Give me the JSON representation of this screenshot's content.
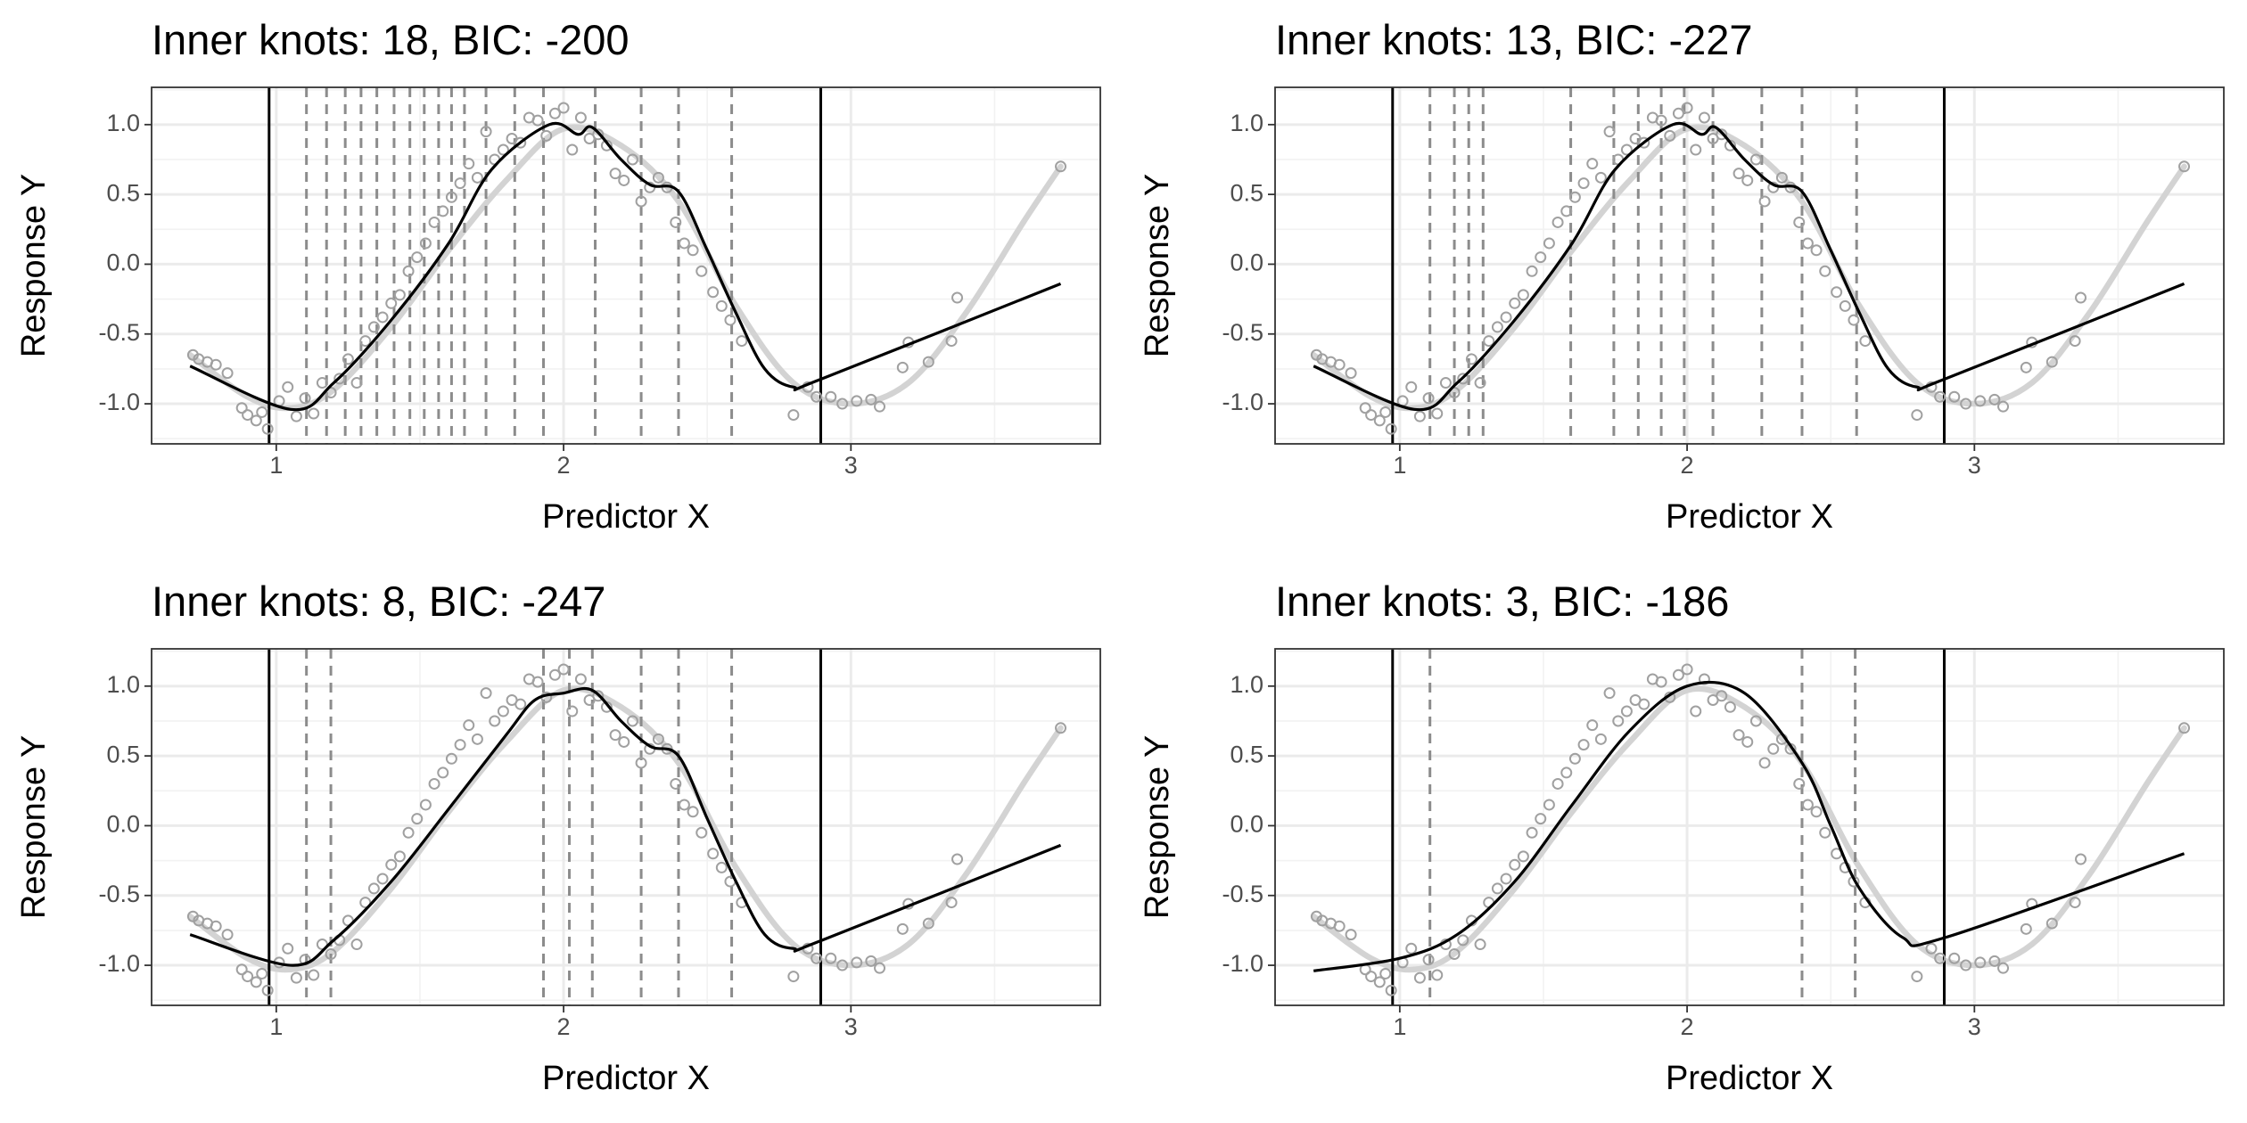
{
  "chart_data": [
    {
      "type": "line",
      "title": "Inner knots: 18, BIC: -200",
      "xlabel": "Predictor X",
      "ylabel": "Response Y",
      "xlim": [
        0.566,
        3.868
      ],
      "ylim": [
        -1.287,
        1.267
      ],
      "xticks": [
        1,
        2,
        3
      ],
      "yticks": [
        {
          "value": -1,
          "label": "-1.0"
        },
        -0.5,
        {
          "value": 0,
          "label": "0.0"
        },
        0.5,
        {
          "value": 1,
          "label": "1.0"
        }
      ],
      "grid": true,
      "points": {
        "color": "#a0a0a0",
        "x": [
          0.71,
          0.73,
          0.76,
          0.79,
          0.83,
          0.88,
          0.9,
          0.93,
          0.95,
          0.97,
          1.01,
          1.04,
          1.07,
          1.1,
          1.13,
          1.16,
          1.19,
          1.22,
          1.25,
          1.28,
          1.31,
          1.34,
          1.37,
          1.4,
          1.43,
          1.46,
          1.49,
          1.52,
          1.55,
          1.58,
          1.61,
          1.64,
          1.67,
          1.7,
          1.73,
          1.76,
          1.79,
          1.82,
          1.85,
          1.88,
          1.91,
          1.94,
          1.97,
          2.0,
          2.03,
          2.06,
          2.09,
          2.12,
          2.15,
          2.18,
          2.21,
          2.24,
          2.27,
          2.3,
          2.33,
          2.36,
          2.39,
          2.42,
          2.45,
          2.48,
          2.52,
          2.55,
          2.58,
          2.62,
          2.8,
          2.85,
          2.88,
          2.93,
          2.97,
          3.02,
          3.07,
          3.1,
          3.18,
          3.2,
          3.27,
          3.35,
          3.37,
          3.73
        ],
        "values": [
          -0.65,
          -0.68,
          -0.7,
          -0.72,
          -0.78,
          -1.03,
          -1.08,
          -1.12,
          -1.06,
          -1.18,
          -0.98,
          -0.88,
          -1.09,
          -0.96,
          -1.07,
          -0.85,
          -0.92,
          -0.82,
          -0.68,
          -0.85,
          -0.55,
          -0.45,
          -0.38,
          -0.28,
          -0.22,
          -0.05,
          0.05,
          0.15,
          0.3,
          0.38,
          0.48,
          0.58,
          0.72,
          0.62,
          0.95,
          0.75,
          0.82,
          0.9,
          0.87,
          1.05,
          1.03,
          0.92,
          1.08,
          1.12,
          0.82,
          1.05,
          0.9,
          0.93,
          0.85,
          0.65,
          0.6,
          0.75,
          0.45,
          0.55,
          0.62,
          0.55,
          0.3,
          0.15,
          0.1,
          -0.05,
          -0.2,
          -0.3,
          -0.4,
          -0.55,
          -1.08,
          -0.88,
          -0.95,
          -0.95,
          -1.0,
          -0.98,
          -0.97,
          -1.02,
          -0.74,
          -0.56,
          -0.7,
          -0.55,
          -0.24,
          0.7
        ]
      },
      "truth": {
        "color": "#d3d3d3",
        "x": [
          0.7,
          0.9,
          1.05,
          1.2,
          1.4,
          1.6,
          1.8,
          2.0,
          2.2,
          2.4,
          2.6,
          2.8,
          3.0,
          3.2,
          3.4,
          3.6,
          3.73
        ],
        "values": [
          -0.65,
          -0.95,
          -1.03,
          -0.9,
          -0.45,
          0.1,
          0.6,
          0.97,
          0.85,
          0.45,
          -0.3,
          -0.85,
          -1.0,
          -0.85,
          -0.35,
          0.3,
          0.7
        ]
      },
      "fit": {
        "color": "#000000",
        "x": [
          0.7,
          1.05,
          1.2,
          1.4,
          1.6,
          1.75,
          1.95,
          2.05,
          2.1,
          2.2,
          2.3,
          2.4,
          2.5,
          2.6,
          2.7,
          2.8,
          2.9,
          3.73
        ],
        "values": [
          -0.73,
          -1.04,
          -0.85,
          -0.4,
          0.15,
          0.68,
          1.0,
          0.93,
          0.98,
          0.75,
          0.57,
          0.52,
          0.1,
          -0.35,
          -0.75,
          -0.88,
          -0.82,
          -0.14
        ]
      },
      "boundary_knots": [
        0.975,
        2.895
      ],
      "inner_knots": [
        1.105,
        1.175,
        1.24,
        1.295,
        1.35,
        1.41,
        1.465,
        1.515,
        1.565,
        1.61,
        1.655,
        1.73,
        1.83,
        1.93,
        2.11,
        2.27,
        2.4,
        2.585
      ]
    },
    {
      "type": "line",
      "title": "Inner knots: 13, BIC: -227",
      "xlabel": "Predictor X",
      "ylabel": "Response Y",
      "xlim": [
        0.566,
        3.868
      ],
      "ylim": [
        -1.287,
        1.267
      ],
      "xticks": [
        1,
        2,
        3
      ],
      "yticks": [
        {
          "value": -1,
          "label": "-1.0"
        },
        -0.5,
        {
          "value": 0,
          "label": "0.0"
        },
        0.5,
        {
          "value": 1,
          "label": "1.0"
        }
      ],
      "grid": true,
      "points": {
        "color": "#a0a0a0",
        "x": [
          0.71,
          0.73,
          0.76,
          0.79,
          0.83,
          0.88,
          0.9,
          0.93,
          0.95,
          0.97,
          1.01,
          1.04,
          1.07,
          1.1,
          1.13,
          1.16,
          1.19,
          1.22,
          1.25,
          1.28,
          1.31,
          1.34,
          1.37,
          1.4,
          1.43,
          1.46,
          1.49,
          1.52,
          1.55,
          1.58,
          1.61,
          1.64,
          1.67,
          1.7,
          1.73,
          1.76,
          1.79,
          1.82,
          1.85,
          1.88,
          1.91,
          1.94,
          1.97,
          2.0,
          2.03,
          2.06,
          2.09,
          2.12,
          2.15,
          2.18,
          2.21,
          2.24,
          2.27,
          2.3,
          2.33,
          2.36,
          2.39,
          2.42,
          2.45,
          2.48,
          2.52,
          2.55,
          2.58,
          2.62,
          2.8,
          2.85,
          2.88,
          2.93,
          2.97,
          3.02,
          3.07,
          3.1,
          3.18,
          3.2,
          3.27,
          3.35,
          3.37,
          3.73
        ],
        "values": [
          -0.65,
          -0.68,
          -0.7,
          -0.72,
          -0.78,
          -1.03,
          -1.08,
          -1.12,
          -1.06,
          -1.18,
          -0.98,
          -0.88,
          -1.09,
          -0.96,
          -1.07,
          -0.85,
          -0.92,
          -0.82,
          -0.68,
          -0.85,
          -0.55,
          -0.45,
          -0.38,
          -0.28,
          -0.22,
          -0.05,
          0.05,
          0.15,
          0.3,
          0.38,
          0.48,
          0.58,
          0.72,
          0.62,
          0.95,
          0.75,
          0.82,
          0.9,
          0.87,
          1.05,
          1.03,
          0.92,
          1.08,
          1.12,
          0.82,
          1.05,
          0.9,
          0.93,
          0.85,
          0.65,
          0.6,
          0.75,
          0.45,
          0.55,
          0.62,
          0.55,
          0.3,
          0.15,
          0.1,
          -0.05,
          -0.2,
          -0.3,
          -0.4,
          -0.55,
          -1.08,
          -0.88,
          -0.95,
          -0.95,
          -1.0,
          -0.98,
          -0.97,
          -1.02,
          -0.74,
          -0.56,
          -0.7,
          -0.55,
          -0.24,
          0.7
        ]
      },
      "truth": {
        "color": "#d3d3d3",
        "x": [
          0.7,
          0.9,
          1.05,
          1.2,
          1.4,
          1.6,
          1.8,
          2.0,
          2.2,
          2.4,
          2.6,
          2.8,
          3.0,
          3.2,
          3.4,
          3.6,
          3.73
        ],
        "values": [
          -0.65,
          -0.95,
          -1.03,
          -0.9,
          -0.45,
          0.1,
          0.6,
          0.97,
          0.85,
          0.45,
          -0.3,
          -0.85,
          -1.0,
          -0.85,
          -0.35,
          0.3,
          0.7
        ]
      },
      "fit": {
        "color": "#000000",
        "x": [
          0.7,
          1.05,
          1.2,
          1.4,
          1.6,
          1.75,
          1.95,
          2.05,
          2.1,
          2.2,
          2.3,
          2.4,
          2.5,
          2.6,
          2.7,
          2.8,
          2.9,
          3.73
        ],
        "values": [
          -0.73,
          -1.04,
          -0.85,
          -0.4,
          0.15,
          0.68,
          1.0,
          0.93,
          0.98,
          0.75,
          0.57,
          0.52,
          0.1,
          -0.35,
          -0.75,
          -0.88,
          -0.82,
          -0.14
        ]
      },
      "boundary_knots": [
        0.975,
        2.895
      ],
      "inner_knots": [
        1.105,
        1.19,
        1.24,
        1.29,
        1.595,
        1.745,
        1.83,
        1.91,
        1.99,
        2.09,
        2.26,
        2.4,
        2.59
      ]
    },
    {
      "type": "line",
      "title": "Inner knots: 8, BIC: -247",
      "xlabel": "Predictor X",
      "ylabel": "Response Y",
      "xlim": [
        0.566,
        3.868
      ],
      "ylim": [
        -1.287,
        1.267
      ],
      "xticks": [
        1,
        2,
        3
      ],
      "yticks": [
        {
          "value": -1,
          "label": "-1.0"
        },
        -0.5,
        {
          "value": 0,
          "label": "0.0"
        },
        0.5,
        {
          "value": 1,
          "label": "1.0"
        }
      ],
      "grid": true,
      "points": {
        "color": "#a0a0a0",
        "x": [
          0.71,
          0.73,
          0.76,
          0.79,
          0.83,
          0.88,
          0.9,
          0.93,
          0.95,
          0.97,
          1.01,
          1.04,
          1.07,
          1.1,
          1.13,
          1.16,
          1.19,
          1.22,
          1.25,
          1.28,
          1.31,
          1.34,
          1.37,
          1.4,
          1.43,
          1.46,
          1.49,
          1.52,
          1.55,
          1.58,
          1.61,
          1.64,
          1.67,
          1.7,
          1.73,
          1.76,
          1.79,
          1.82,
          1.85,
          1.88,
          1.91,
          1.94,
          1.97,
          2.0,
          2.03,
          2.06,
          2.09,
          2.12,
          2.15,
          2.18,
          2.21,
          2.24,
          2.27,
          2.3,
          2.33,
          2.36,
          2.39,
          2.42,
          2.45,
          2.48,
          2.52,
          2.55,
          2.58,
          2.62,
          2.8,
          2.85,
          2.88,
          2.93,
          2.97,
          3.02,
          3.07,
          3.1,
          3.18,
          3.2,
          3.27,
          3.35,
          3.37,
          3.73
        ],
        "values": [
          -0.65,
          -0.68,
          -0.7,
          -0.72,
          -0.78,
          -1.03,
          -1.08,
          -1.12,
          -1.06,
          -1.18,
          -0.98,
          -0.88,
          -1.09,
          -0.96,
          -1.07,
          -0.85,
          -0.92,
          -0.82,
          -0.68,
          -0.85,
          -0.55,
          -0.45,
          -0.38,
          -0.28,
          -0.22,
          -0.05,
          0.05,
          0.15,
          0.3,
          0.38,
          0.48,
          0.58,
          0.72,
          0.62,
          0.95,
          0.75,
          0.82,
          0.9,
          0.87,
          1.05,
          1.03,
          0.92,
          1.08,
          1.12,
          0.82,
          1.05,
          0.9,
          0.93,
          0.85,
          0.65,
          0.6,
          0.75,
          0.45,
          0.55,
          0.62,
          0.55,
          0.3,
          0.15,
          0.1,
          -0.05,
          -0.2,
          -0.3,
          -0.4,
          -0.55,
          -1.08,
          -0.88,
          -0.95,
          -0.95,
          -1.0,
          -0.98,
          -0.97,
          -1.02,
          -0.74,
          -0.56,
          -0.7,
          -0.55,
          -0.24,
          0.7
        ]
      },
      "truth": {
        "color": "#d3d3d3",
        "x": [
          0.7,
          0.9,
          1.05,
          1.2,
          1.4,
          1.6,
          1.8,
          2.0,
          2.2,
          2.4,
          2.6,
          2.8,
          3.0,
          3.2,
          3.4,
          3.6,
          3.73
        ],
        "values": [
          -0.65,
          -0.95,
          -1.03,
          -0.9,
          -0.45,
          0.1,
          0.6,
          0.97,
          0.85,
          0.45,
          -0.3,
          -0.85,
          -1.0,
          -0.85,
          -0.35,
          0.3,
          0.7
        ]
      },
      "fit": {
        "color": "#000000",
        "x": [
          0.7,
          1.05,
          1.2,
          1.4,
          1.6,
          1.8,
          1.9,
          2.0,
          2.1,
          2.2,
          2.3,
          2.4,
          2.5,
          2.6,
          2.7,
          2.8,
          2.9,
          3.73
        ],
        "values": [
          -0.78,
          -1.0,
          -0.82,
          -0.4,
          0.12,
          0.65,
          0.9,
          0.95,
          0.97,
          0.75,
          0.57,
          0.5,
          0.05,
          -0.4,
          -0.78,
          -0.88,
          -0.82,
          -0.14
        ]
      },
      "boundary_knots": [
        0.975,
        2.895
      ],
      "inner_knots": [
        1.105,
        1.19,
        1.93,
        2.02,
        2.1,
        2.27,
        2.4,
        2.585
      ]
    },
    {
      "type": "line",
      "title": "Inner knots: 3, BIC: -186",
      "xlabel": "Predictor X",
      "ylabel": "Response Y",
      "xlim": [
        0.566,
        3.868
      ],
      "ylim": [
        -1.287,
        1.267
      ],
      "xticks": [
        1,
        2,
        3
      ],
      "yticks": [
        {
          "value": -1,
          "label": "-1.0"
        },
        -0.5,
        {
          "value": 0,
          "label": "0.0"
        },
        0.5,
        {
          "value": 1,
          "label": "1.0"
        }
      ],
      "grid": true,
      "points": {
        "color": "#a0a0a0",
        "x": [
          0.71,
          0.73,
          0.76,
          0.79,
          0.83,
          0.88,
          0.9,
          0.93,
          0.95,
          0.97,
          1.01,
          1.04,
          1.07,
          1.1,
          1.13,
          1.16,
          1.19,
          1.22,
          1.25,
          1.28,
          1.31,
          1.34,
          1.37,
          1.4,
          1.43,
          1.46,
          1.49,
          1.52,
          1.55,
          1.58,
          1.61,
          1.64,
          1.67,
          1.7,
          1.73,
          1.76,
          1.79,
          1.82,
          1.85,
          1.88,
          1.91,
          1.94,
          1.97,
          2.0,
          2.03,
          2.06,
          2.09,
          2.12,
          2.15,
          2.18,
          2.21,
          2.24,
          2.27,
          2.3,
          2.33,
          2.36,
          2.39,
          2.42,
          2.45,
          2.48,
          2.52,
          2.55,
          2.58,
          2.62,
          2.8,
          2.85,
          2.88,
          2.93,
          2.97,
          3.02,
          3.07,
          3.1,
          3.18,
          3.2,
          3.27,
          3.35,
          3.37,
          3.73
        ],
        "values": [
          -0.65,
          -0.68,
          -0.7,
          -0.72,
          -0.78,
          -1.03,
          -1.08,
          -1.12,
          -1.06,
          -1.18,
          -0.98,
          -0.88,
          -1.09,
          -0.96,
          -1.07,
          -0.85,
          -0.92,
          -0.82,
          -0.68,
          -0.85,
          -0.55,
          -0.45,
          -0.38,
          -0.28,
          -0.22,
          -0.05,
          0.05,
          0.15,
          0.3,
          0.38,
          0.48,
          0.58,
          0.72,
          0.62,
          0.95,
          0.75,
          0.82,
          0.9,
          0.87,
          1.05,
          1.03,
          0.92,
          1.08,
          1.12,
          0.82,
          1.05,
          0.9,
          0.93,
          0.85,
          0.65,
          0.6,
          0.75,
          0.45,
          0.55,
          0.62,
          0.55,
          0.3,
          0.15,
          0.1,
          -0.05,
          -0.2,
          -0.3,
          -0.4,
          -0.55,
          -1.08,
          -0.88,
          -0.95,
          -0.95,
          -1.0,
          -0.98,
          -0.97,
          -1.02,
          -0.74,
          -0.56,
          -0.7,
          -0.55,
          -0.24,
          0.7
        ]
      },
      "truth": {
        "color": "#d3d3d3",
        "x": [
          0.7,
          0.9,
          1.05,
          1.2,
          1.4,
          1.6,
          1.8,
          2.0,
          2.2,
          2.4,
          2.6,
          2.8,
          3.0,
          3.2,
          3.4,
          3.6,
          3.73
        ],
        "values": [
          -0.65,
          -0.95,
          -1.03,
          -0.9,
          -0.45,
          0.1,
          0.6,
          0.97,
          0.85,
          0.45,
          -0.3,
          -0.85,
          -1.0,
          -0.85,
          -0.35,
          0.3,
          0.7
        ]
      },
      "fit": {
        "color": "#000000",
        "x": [
          0.7,
          1.0,
          1.2,
          1.4,
          1.6,
          1.8,
          2.0,
          2.2,
          2.4,
          2.5,
          2.6,
          2.75,
          2.9,
          3.73
        ],
        "values": [
          -1.04,
          -0.95,
          -0.78,
          -0.4,
          0.15,
          0.68,
          1.0,
          0.95,
          0.45,
          0.0,
          -0.45,
          -0.8,
          -0.8,
          -0.2
        ]
      },
      "boundary_knots": [
        0.975,
        2.895
      ],
      "inner_knots": [
        1.105,
        2.4,
        2.585
      ]
    }
  ]
}
